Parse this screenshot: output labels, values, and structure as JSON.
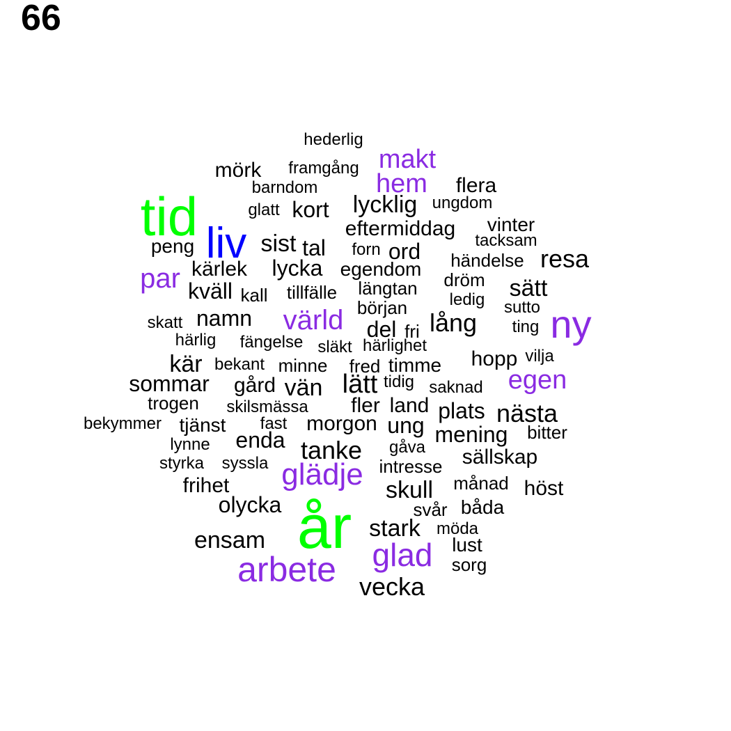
{
  "page_number": "66",
  "colors": {
    "top": "#00ff00",
    "high": "#0000ff",
    "mid": "#8a2be2",
    "low": "#000000"
  },
  "words": [
    {
      "text": "år",
      "tier": "top"
    },
    {
      "text": "tid",
      "tier": "top"
    },
    {
      "text": "liv",
      "tier": "high"
    },
    {
      "text": "ny",
      "tier": "mid"
    },
    {
      "text": "arbete",
      "tier": "mid"
    },
    {
      "text": "glädje",
      "tier": "mid"
    },
    {
      "text": "glad",
      "tier": "mid"
    },
    {
      "text": "värld",
      "tier": "mid"
    },
    {
      "text": "makt",
      "tier": "mid"
    },
    {
      "text": "hem",
      "tier": "mid"
    },
    {
      "text": "par",
      "tier": "mid"
    },
    {
      "text": "egen",
      "tier": "mid"
    },
    {
      "text": "hederlig",
      "tier": "low"
    },
    {
      "text": "mörk",
      "tier": "low"
    },
    {
      "text": "framgång",
      "tier": "low"
    },
    {
      "text": "barndom",
      "tier": "low"
    },
    {
      "text": "flera",
      "tier": "low"
    },
    {
      "text": "glatt",
      "tier": "low"
    },
    {
      "text": "kort",
      "tier": "low"
    },
    {
      "text": "lycklig",
      "tier": "low"
    },
    {
      "text": "ungdom",
      "tier": "low"
    },
    {
      "text": "eftermiddag",
      "tier": "low"
    },
    {
      "text": "vinter",
      "tier": "low"
    },
    {
      "text": "tacksam",
      "tier": "low"
    },
    {
      "text": "peng",
      "tier": "low"
    },
    {
      "text": "sist",
      "tier": "low"
    },
    {
      "text": "tal",
      "tier": "low"
    },
    {
      "text": "forn",
      "tier": "low"
    },
    {
      "text": "ord",
      "tier": "low"
    },
    {
      "text": "resa",
      "tier": "low"
    },
    {
      "text": "händelse",
      "tier": "low"
    },
    {
      "text": "kärlek",
      "tier": "low"
    },
    {
      "text": "lycka",
      "tier": "low"
    },
    {
      "text": "egendom",
      "tier": "low"
    },
    {
      "text": "dröm",
      "tier": "low"
    },
    {
      "text": "kväll",
      "tier": "low"
    },
    {
      "text": "kall",
      "tier": "low"
    },
    {
      "text": "tillfälle",
      "tier": "low"
    },
    {
      "text": "längtan",
      "tier": "low"
    },
    {
      "text": "sätt",
      "tier": "low"
    },
    {
      "text": "ledig",
      "tier": "low"
    },
    {
      "text": "början",
      "tier": "low"
    },
    {
      "text": "sutto",
      "tier": "low"
    },
    {
      "text": "skatt",
      "tier": "low"
    },
    {
      "text": "namn",
      "tier": "low"
    },
    {
      "text": "lång",
      "tier": "low"
    },
    {
      "text": "del",
      "tier": "low"
    },
    {
      "text": "fri",
      "tier": "low"
    },
    {
      "text": "ting",
      "tier": "low"
    },
    {
      "text": "härlig",
      "tier": "low"
    },
    {
      "text": "fängelse",
      "tier": "low"
    },
    {
      "text": "släkt",
      "tier": "low"
    },
    {
      "text": "härlighet",
      "tier": "low"
    },
    {
      "text": "kär",
      "tier": "low"
    },
    {
      "text": "bekant",
      "tier": "low"
    },
    {
      "text": "minne",
      "tier": "low"
    },
    {
      "text": "fred",
      "tier": "low"
    },
    {
      "text": "timme",
      "tier": "low"
    },
    {
      "text": "hopp",
      "tier": "low"
    },
    {
      "text": "vilja",
      "tier": "low"
    },
    {
      "text": "sommar",
      "tier": "low"
    },
    {
      "text": "gård",
      "tier": "low"
    },
    {
      "text": "vän",
      "tier": "low"
    },
    {
      "text": "lätt",
      "tier": "low"
    },
    {
      "text": "tidig",
      "tier": "low"
    },
    {
      "text": "saknad",
      "tier": "low"
    },
    {
      "text": "trogen",
      "tier": "low"
    },
    {
      "text": "skilsmässa",
      "tier": "low"
    },
    {
      "text": "fler",
      "tier": "low"
    },
    {
      "text": "land",
      "tier": "low"
    },
    {
      "text": "plats",
      "tier": "low"
    },
    {
      "text": "nästa",
      "tier": "low"
    },
    {
      "text": "bekymmer",
      "tier": "low"
    },
    {
      "text": "tjänst",
      "tier": "low"
    },
    {
      "text": "fast",
      "tier": "low"
    },
    {
      "text": "morgon",
      "tier": "low"
    },
    {
      "text": "ung",
      "tier": "low"
    },
    {
      "text": "mening",
      "tier": "low"
    },
    {
      "text": "bitter",
      "tier": "low"
    },
    {
      "text": "lynne",
      "tier": "low"
    },
    {
      "text": "enda",
      "tier": "low"
    },
    {
      "text": "tanke",
      "tier": "low"
    },
    {
      "text": "gåva",
      "tier": "low"
    },
    {
      "text": "sällskap",
      "tier": "low"
    },
    {
      "text": "styrka",
      "tier": "low"
    },
    {
      "text": "syssla",
      "tier": "low"
    },
    {
      "text": "intresse",
      "tier": "low"
    },
    {
      "text": "frihet",
      "tier": "low"
    },
    {
      "text": "månad",
      "tier": "low"
    },
    {
      "text": "höst",
      "tier": "low"
    },
    {
      "text": "skull",
      "tier": "low"
    },
    {
      "text": "olycka",
      "tier": "low"
    },
    {
      "text": "svår",
      "tier": "low"
    },
    {
      "text": "båda",
      "tier": "low"
    },
    {
      "text": "stark",
      "tier": "low"
    },
    {
      "text": "möda",
      "tier": "low"
    },
    {
      "text": "ensam",
      "tier": "low"
    },
    {
      "text": "lust",
      "tier": "low"
    },
    {
      "text": "sorg",
      "tier": "low"
    },
    {
      "text": "vecka",
      "tier": "low"
    }
  ]
}
